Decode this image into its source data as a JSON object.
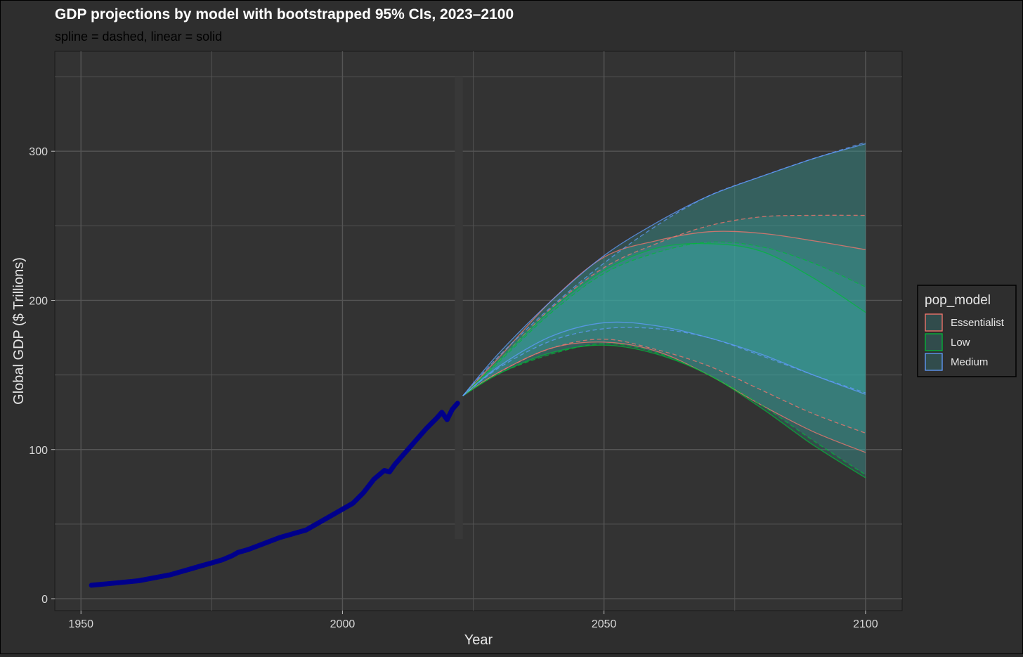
{
  "chart_data": {
    "type": "area",
    "title": "GDP projections by model with bootstrapped 95% CIs, 2023–2100",
    "subtitle": "spline = dashed, linear = solid",
    "xlabel": "Year",
    "ylabel": "Global GDP ($ Trillions)",
    "xlim": [
      1945,
      2107
    ],
    "ylim": [
      -8,
      367
    ],
    "x_ticks": [
      1950,
      2000,
      2050,
      2100
    ],
    "x_tick_labels": [
      "1950",
      "2000",
      "2050",
      "2100"
    ],
    "y_ticks": [
      0,
      100,
      200,
      300
    ],
    "y_tick_labels": [
      "0",
      "100",
      "200",
      "300"
    ],
    "grid": true,
    "history": {
      "color": "#00008b",
      "x": [
        1952,
        1955,
        1958,
        1961,
        1964,
        1967,
        1970,
        1973,
        1975,
        1977,
        1979,
        1980,
        1982,
        1985,
        1988,
        1990,
        1993,
        1995,
        1997,
        1999,
        2000,
        2002,
        2004,
        2006,
        2008,
        2009,
        2010,
        2012,
        2014,
        2016,
        2018,
        2019,
        2020,
        2021,
        2022
      ],
      "y": [
        9,
        10,
        11,
        12,
        14,
        16,
        19,
        22,
        24,
        26,
        29,
        31,
        33,
        37,
        41,
        43,
        46,
        50,
        54,
        58,
        60,
        64,
        71,
        80,
        86,
        85,
        90,
        98,
        106,
        114,
        121,
        125,
        120,
        127,
        131
      ]
    },
    "series": [
      {
        "name": "Essentialist",
        "color": "#f8766d",
        "linear_upper": {
          "x": [
            2023,
            2030,
            2040,
            2050,
            2060,
            2070,
            2080,
            2090,
            2100
          ],
          "y": [
            136,
            162,
            200,
            229,
            240,
            246,
            245,
            240,
            234
          ]
        },
        "linear_lower": {
          "x": [
            2023,
            2030,
            2040,
            2050,
            2060,
            2070,
            2080,
            2090,
            2100
          ],
          "y": [
            136,
            152,
            168,
            172,
            166,
            150,
            130,
            112,
            98
          ]
        },
        "spline_upper": {
          "x": [
            2023,
            2030,
            2040,
            2050,
            2060,
            2070,
            2080,
            2090,
            2100
          ],
          "y": [
            136,
            160,
            195,
            222,
            238,
            250,
            256,
            257,
            257
          ]
        },
        "spline_lower": {
          "x": [
            2023,
            2030,
            2040,
            2050,
            2060,
            2070,
            2080,
            2090,
            2100
          ],
          "y": [
            136,
            152,
            168,
            174,
            167,
            156,
            140,
            124,
            111
          ]
        }
      },
      {
        "name": "Low",
        "color": "#00ba38",
        "linear_upper": {
          "x": [
            2023,
            2030,
            2040,
            2050,
            2060,
            2070,
            2080,
            2090,
            2100
          ],
          "y": [
            136,
            160,
            194,
            220,
            235,
            238,
            233,
            215,
            192
          ]
        },
        "linear_lower": {
          "x": [
            2023,
            2030,
            2040,
            2050,
            2060,
            2070,
            2080,
            2090,
            2100
          ],
          "y": [
            136,
            151,
            165,
            170,
            164,
            150,
            128,
            103,
            81
          ]
        },
        "spline_upper": {
          "x": [
            2023,
            2030,
            2040,
            2050,
            2060,
            2070,
            2080,
            2090,
            2100
          ],
          "y": [
            136,
            159,
            192,
            218,
            232,
            239,
            236,
            225,
            209
          ]
        },
        "spline_lower": {
          "x": [
            2023,
            2030,
            2040,
            2050,
            2060,
            2070,
            2080,
            2090,
            2100
          ],
          "y": [
            136,
            151,
            164,
            171,
            165,
            150,
            130,
            106,
            83
          ]
        }
      },
      {
        "name": "Medium",
        "color": "#619cff",
        "linear_upper": {
          "x": [
            2023,
            2030,
            2040,
            2050,
            2060,
            2070,
            2080,
            2090,
            2100
          ],
          "y": [
            136,
            165,
            200,
            230,
            252,
            270,
            283,
            295,
            305
          ]
        },
        "linear_lower": {
          "x": [
            2023,
            2030,
            2040,
            2050,
            2060,
            2070,
            2080,
            2090,
            2100
          ],
          "y": [
            136,
            156,
            176,
            185,
            183,
            175,
            164,
            150,
            137
          ]
        },
        "spline_upper": {
          "x": [
            2023,
            2030,
            2040,
            2050,
            2060,
            2070,
            2080,
            2090,
            2100
          ],
          "y": [
            136,
            163,
            196,
            225,
            250,
            270,
            283,
            295,
            306
          ]
        },
        "spline_lower": {
          "x": [
            2023,
            2030,
            2040,
            2050,
            2060,
            2070,
            2080,
            2090,
            2100
          ],
          "y": [
            136,
            155,
            173,
            181,
            181,
            175,
            163,
            150,
            138
          ]
        }
      }
    ],
    "legend": {
      "title": "pop_model",
      "placement": "right",
      "entries": [
        "Essentialist",
        "Low",
        "Medium"
      ]
    },
    "colors": {
      "panel": "#333333",
      "grid": "#555555",
      "page": "#2e2e2e",
      "fill": "#3aa9a6"
    }
  }
}
